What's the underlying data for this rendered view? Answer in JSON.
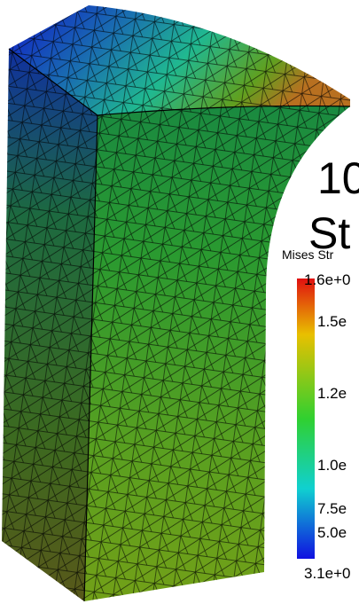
{
  "title": {
    "line1": "10",
    "line2": "St"
  },
  "colorbar": {
    "label": "Mises Str",
    "ticks": [
      "1.6e+0",
      "1.5e",
      "1.2e",
      "1.0e",
      "7.5e",
      "5.0e",
      "3.1e+0"
    ]
  }
}
